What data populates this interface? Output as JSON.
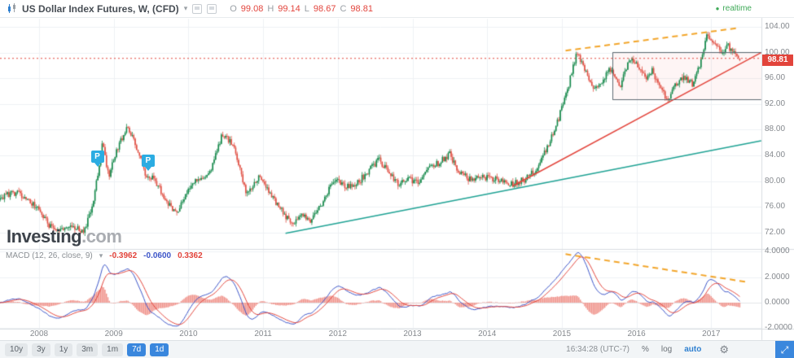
{
  "header": {
    "title": "US Dollar Index Futures, W, (CFD)",
    "ohlc": [
      {
        "label": "O",
        "value": "99.08"
      },
      {
        "label": "H",
        "value": "99.14"
      },
      {
        "label": "L",
        "value": "98.67"
      },
      {
        "label": "C",
        "value": "98.81"
      }
    ],
    "realtime_label": "realtime"
  },
  "icons": {
    "caret": "▾",
    "gear": "⚙",
    "expand": "⤢",
    "dot": "●"
  },
  "watermark": {
    "bold": "Investing",
    "light": ".com"
  },
  "price_axis": {
    "ticks": [
      "104.00",
      "100.00",
      "96.00",
      "92.00",
      "88.00",
      "84.00",
      "80.00",
      "76.00",
      "72.00"
    ],
    "last_price": "98.81"
  },
  "macd_panel": {
    "label": "MACD (12, 26, close, 9)",
    "values": [
      {
        "text": "-0.3962",
        "color": "#e2443b"
      },
      {
        "text": "-0.0600",
        "color": "#3c55c8"
      },
      {
        "text": "0.3362",
        "color": "#e2443b"
      }
    ],
    "axis_ticks": [
      "4.0000",
      "2.0000",
      "0.0000",
      "-2.0000"
    ]
  },
  "x_axis": {
    "years": [
      "2008",
      "2009",
      "2010",
      "2011",
      "2012",
      "2013",
      "2014",
      "2015",
      "2016",
      "2017"
    ]
  },
  "toolbar": {
    "ranges": [
      {
        "label": "10y",
        "active": false
      },
      {
        "label": "3y",
        "active": false
      },
      {
        "label": "1y",
        "active": false
      },
      {
        "label": "3m",
        "active": false
      },
      {
        "label": "1m",
        "active": false
      },
      {
        "label": "7d",
        "active": true
      },
      {
        "label": "1d",
        "active": true
      }
    ],
    "clock": "16:34:28 (UTC-7)",
    "scale_buttons": [
      {
        "label": "%",
        "active": false
      },
      {
        "label": "log",
        "active": false
      },
      {
        "label": "auto",
        "active": true
      }
    ]
  },
  "chart_data": {
    "type": "candlestick",
    "symbol": "US Dollar Index Futures",
    "interval": "W",
    "x_range": [
      2007.45,
      2017.67
    ],
    "price_ylim": [
      70.5,
      104.5
    ],
    "price_ticks": [
      104,
      100,
      96,
      92,
      88,
      84,
      80,
      76,
      72
    ],
    "last_candle": {
      "open": 99.08,
      "high": 99.14,
      "low": 98.67,
      "close": 98.81
    },
    "price_anchors": [
      [
        2007.45,
        77.5
      ],
      [
        2007.7,
        78.3
      ],
      [
        2007.95,
        76.2
      ],
      [
        2008.15,
        73.0
      ],
      [
        2008.3,
        72.3
      ],
      [
        2008.45,
        72.8
      ],
      [
        2008.6,
        72.2
      ],
      [
        2008.72,
        76.0
      ],
      [
        2008.85,
        86.0
      ],
      [
        2008.93,
        80.8
      ],
      [
        2009.05,
        85.0
      ],
      [
        2009.18,
        88.6
      ],
      [
        2009.3,
        85.5
      ],
      [
        2009.42,
        81.0
      ],
      [
        2009.55,
        80.3
      ],
      [
        2009.7,
        77.0
      ],
      [
        2009.85,
        75.0
      ],
      [
        2009.97,
        77.8
      ],
      [
        2010.1,
        80.2
      ],
      [
        2010.28,
        81.0
      ],
      [
        2010.45,
        87.3
      ],
      [
        2010.6,
        85.8
      ],
      [
        2010.78,
        77.8
      ],
      [
        2010.95,
        80.8
      ],
      [
        2011.1,
        77.8
      ],
      [
        2011.25,
        75.5
      ],
      [
        2011.38,
        73.2
      ],
      [
        2011.5,
        74.8
      ],
      [
        2011.62,
        73.8
      ],
      [
        2011.78,
        76.5
      ],
      [
        2011.95,
        80.3
      ],
      [
        2012.1,
        79.0
      ],
      [
        2012.25,
        79.5
      ],
      [
        2012.4,
        81.5
      ],
      [
        2012.55,
        83.4
      ],
      [
        2012.7,
        81.0
      ],
      [
        2012.82,
        79.5
      ],
      [
        2012.95,
        80.3
      ],
      [
        2013.08,
        79.8
      ],
      [
        2013.22,
        82.3
      ],
      [
        2013.35,
        82.8
      ],
      [
        2013.5,
        84.3
      ],
      [
        2013.62,
        81.3
      ],
      [
        2013.78,
        80.3
      ],
      [
        2013.9,
        80.8
      ],
      [
        2014.05,
        80.5
      ],
      [
        2014.2,
        80.0
      ],
      [
        2014.35,
        79.6
      ],
      [
        2014.5,
        80.3
      ],
      [
        2014.65,
        81.7
      ],
      [
        2014.8,
        85.0
      ],
      [
        2014.95,
        89.5
      ],
      [
        2015.08,
        94.5
      ],
      [
        2015.2,
        100.0
      ],
      [
        2015.32,
        97.0
      ],
      [
        2015.42,
        94.2
      ],
      [
        2015.55,
        95.8
      ],
      [
        2015.65,
        97.5
      ],
      [
        2015.78,
        94.5
      ],
      [
        2015.9,
        99.2
      ],
      [
        2016.0,
        98.3
      ],
      [
        2016.12,
        96.2
      ],
      [
        2016.22,
        97.2
      ],
      [
        2016.32,
        94.2
      ],
      [
        2016.42,
        92.9
      ],
      [
        2016.55,
        95.3
      ],
      [
        2016.65,
        96.2
      ],
      [
        2016.75,
        95.0
      ],
      [
        2016.85,
        98.3
      ],
      [
        2016.95,
        103.0
      ],
      [
        2017.05,
        101.2
      ],
      [
        2017.15,
        100.2
      ],
      [
        2017.23,
        101.0
      ],
      [
        2017.32,
        99.6
      ],
      [
        2017.385,
        98.9
      ]
    ],
    "macd_ticks": [
      4,
      2,
      0,
      -2
    ],
    "markers": [
      {
        "t": 2008.78,
        "p": 82.3,
        "label": "P"
      },
      {
        "t": 2009.46,
        "p": 81.6,
        "label": "P"
      }
    ],
    "drawings": [
      {
        "type": "hline",
        "p": 99.1,
        "color": "#e2443b",
        "width": 1,
        "dash": [
          2,
          3
        ]
      },
      {
        "type": "trendline",
        "x1": 2011.3,
        "p1": 71.9,
        "x2": 2017.67,
        "p2": 86.3,
        "color": "#1fa294",
        "width": 1.5,
        "dash": []
      },
      {
        "type": "trendline",
        "x1": 2014.35,
        "p1": 79.3,
        "x2": 2017.67,
        "p2": 100.0,
        "color": "#e2443b",
        "width": 1.5,
        "dash": []
      },
      {
        "type": "trendline",
        "x1": 2015.05,
        "p1": 100.3,
        "x2": 2017.35,
        "p2": 103.8,
        "color": "#f2a52a",
        "width": 2,
        "dash": [
          7,
          5
        ]
      },
      {
        "type": "rect",
        "x1": 2015.68,
        "p1": 100.05,
        "x2": 2017.67,
        "p2": 92.75,
        "stroke": "#5f6b73",
        "fill": "rgba(226,68,59,0.05)"
      },
      {
        "type": "macd_trendline",
        "x1": 2015.05,
        "v1": 3.8,
        "x2": 2017.5,
        "v2": 1.6,
        "color": "#f2a52a",
        "width": 2,
        "dash": [
          7,
          5
        ]
      }
    ],
    "colors": {
      "up": "#14884a",
      "down": "#e04f43",
      "macd_line": "#3c55c8",
      "signal_line": "#e2443b",
      "hist": "#ef9088",
      "grid": "#eef1f4",
      "separator": "#d9dde1"
    }
  }
}
